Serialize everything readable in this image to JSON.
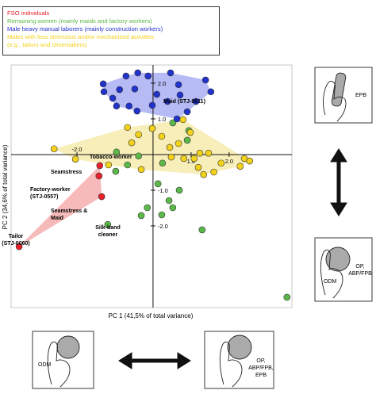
{
  "chart_data": {
    "type": "scatter",
    "x_label": "PC 1 (41,5% of total variance)",
    "y_label": "PC 2 (34,6% of total variance)",
    "xlim": [
      -3.73,
      3.65
    ],
    "ylim": [
      -4.29,
      2.51
    ],
    "xticks": [
      {
        "value": -2,
        "label": "-2.0"
      },
      {
        "value": 1,
        "label": "1.0"
      },
      {
        "value": 2,
        "label": "2.0"
      }
    ],
    "yticks": [
      {
        "value": 2,
        "label": "2.0"
      },
      {
        "value": 1,
        "label": "1.0"
      },
      {
        "value": -1,
        "label": "-1.0"
      },
      {
        "value": -2,
        "label": "-2.0"
      }
    ],
    "series": [
      {
        "name": "FSO individuals",
        "color": "#e8202a",
        "hull": true,
        "hull_color": "rgba(240,130,130,0.55)",
        "x": [
          -1.4,
          -1.42,
          -1.35,
          -3.52
        ],
        "y": [
          -0.31,
          -0.6,
          -1.18,
          -2.58
        ]
      },
      {
        "name": "Remaining women (mainly maids and factory workers)",
        "color": "#5cb848",
        "hull": false,
        "x": [
          -0.96,
          -0.98,
          -0.38,
          -0.67,
          0.25,
          0.13,
          -0.15,
          -0.31,
          0.52,
          0.23,
          1.29,
          0.69,
          0.9,
          0.52,
          -1.19,
          3.52,
          0.42,
          0.94
        ],
        "y": [
          0.07,
          -0.47,
          -0.04,
          -0.29,
          -0.24,
          -0.82,
          -1.49,
          -1.71,
          -1.49,
          -1.69,
          -2.11,
          -1.0,
          0.4,
          0.89,
          -1.96,
          -4.0,
          -1.29,
          0.67
        ]
      },
      {
        "name": "Male heavy manual laborers (mainly construction workers)",
        "color": "#2233cc",
        "hull": true,
        "hull_color": "rgba(110,120,235,0.5)",
        "x": [
          -0.71,
          -0.4,
          -0.13,
          0.46,
          0.67,
          1.38,
          -0.88,
          -0.48,
          -1.31,
          -1.29,
          -1.06,
          -0.96,
          -0.63,
          -0.42,
          -0.02,
          0.71,
          0.38,
          0.1,
          0.63,
          0.9,
          1.13,
          1.52
        ],
        "y": [
          2.2,
          2.29,
          2.2,
          2.29,
          1.96,
          2.09,
          1.82,
          1.84,
          1.98,
          1.76,
          1.58,
          1.36,
          1.36,
          1.22,
          1.38,
          1.67,
          1.49,
          1.69,
          1.0,
          1.2,
          1.49,
          1.76
        ]
      },
      {
        "name": "Males with less strenuous and/or mechanized activities (e.g., tailors and shoemakers)",
        "color": "#f2d21a",
        "hull": true,
        "hull_color": "rgba(242,226,140,0.6)",
        "x": [
          -2.6,
          -2.04,
          -1.17,
          -0.67,
          -0.38,
          -0.31,
          -0.02,
          0.23,
          0.44,
          0.67,
          0.81,
          0.98,
          1.08,
          1.19,
          1.33,
          1.46,
          1.6,
          1.79,
          2.29,
          2.4,
          2.54,
          0.79,
          0.48,
          -0.56,
          1.23
        ],
        "y": [
          0.16,
          -0.13,
          -0.29,
          0.76,
          0.56,
          -0.42,
          0.73,
          0.51,
          0.2,
          0.31,
          -0.11,
          0.62,
          -0.11,
          -0.36,
          -0.56,
          0.04,
          -0.49,
          -0.24,
          -0.33,
          -0.11,
          -0.18,
          0.98,
          -0.07,
          0.33,
          0.04
        ]
      }
    ],
    "annotations": [
      {
        "lines": [
          "Maid (STJ-0611)"
        ]
      },
      {
        "lines": [
          "Tobacco-worker"
        ]
      },
      {
        "lines": [
          "Seamstress"
        ]
      },
      {
        "lines": [
          "Factory-worker",
          "(STJ-0557)"
        ]
      },
      {
        "lines": [
          "Seamstress &",
          "Maid"
        ]
      },
      {
        "lines": [
          "Silk-band",
          "cleaner"
        ]
      },
      {
        "lines": [
          "Tailor",
          "(STJ-0060)"
        ]
      }
    ]
  },
  "panels": [
    {
      "labels": [
        "EPB"
      ]
    },
    {
      "labels": [
        "ODM",
        "OP,",
        "ABP/FPB"
      ]
    },
    {
      "labels": [
        "ODM"
      ]
    },
    {
      "labels": [
        "OP,",
        "ABP/FPB,",
        "EPB"
      ]
    }
  ]
}
